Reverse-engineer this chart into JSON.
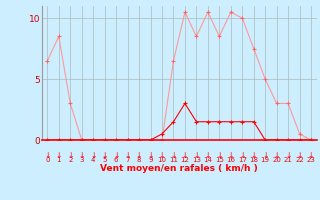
{
  "x": [
    0,
    1,
    2,
    3,
    4,
    5,
    6,
    7,
    8,
    9,
    10,
    11,
    12,
    13,
    14,
    15,
    16,
    17,
    18,
    19,
    20,
    21,
    22,
    23
  ],
  "y_rafales": [
    6.5,
    8.5,
    3.0,
    0.0,
    0.0,
    0.0,
    0.0,
    0.0,
    0.0,
    0.0,
    0.0,
    6.5,
    10.5,
    8.5,
    10.5,
    8.5,
    10.5,
    10.0,
    7.5,
    5.0,
    3.0,
    3.0,
    0.5,
    0.0
  ],
  "y_moyen": [
    0.0,
    0.0,
    0.0,
    0.0,
    0.0,
    0.0,
    0.0,
    0.0,
    0.0,
    0.0,
    0.5,
    1.5,
    3.0,
    1.5,
    1.5,
    1.5,
    1.5,
    1.5,
    1.5,
    0.0,
    0.0,
    0.0,
    0.0,
    0.0
  ],
  "line_color_rafales": "#FF9999",
  "line_color_moyen": "#FF0000",
  "background_color": "#CCEEFF",
  "grid_color": "#AABBBB",
  "xlabel": "Vent moyen/en rafales ( km/h )",
  "xlabel_color": "#FF0000",
  "tick_label_color": "#FF0000",
  "ytick_label_color": "#CC0000",
  "yticks": [
    0,
    5,
    10
  ],
  "xticks": [
    0,
    1,
    2,
    3,
    4,
    5,
    6,
    7,
    8,
    9,
    10,
    11,
    12,
    13,
    14,
    15,
    16,
    17,
    18,
    19,
    20,
    21,
    22,
    23
  ],
  "ylim": [
    0,
    11.0
  ],
  "xlim": [
    -0.5,
    23.5
  ]
}
